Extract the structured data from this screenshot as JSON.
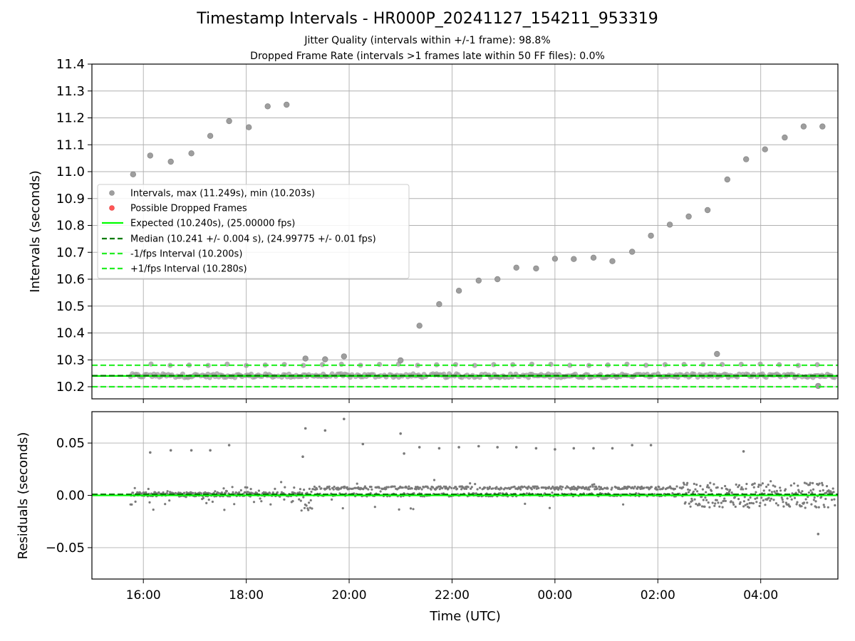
{
  "figure": {
    "title": "Timestamp Intervals - HR000P_20241127_154211_953319",
    "subtitle_1": "Jitter Quality (intervals within +/-1 frame): 98.8%",
    "subtitle_2": "Dropped Frame Rate (intervals >1 frames late within 50 FF files): 0.0%"
  },
  "colors": {
    "intervals": "#9e9e9e",
    "residuals": "#7a7a7a",
    "dropped": "#ff5555",
    "expected": "#00ff00",
    "median": "#007a00",
    "bounds": "#22ee22",
    "grid": "#b0b0b0"
  },
  "chart_data": [
    {
      "type": "scatter",
      "ylabel": "Intervals (seconds)",
      "xlabel": "",
      "ylim": [
        10.155,
        11.4
      ],
      "y_ticks": [
        "10.2",
        "10.3",
        "10.4",
        "10.5",
        "10.6",
        "10.7",
        "10.8",
        "10.9",
        "11.0",
        "11.1",
        "11.2",
        "11.3",
        "11.4"
      ],
      "x_ticks": [
        "16:00",
        "18:00",
        "20:00",
        "22:00",
        "00:00",
        "02:00",
        "04:00"
      ],
      "grid": true,
      "legend_position": "center-left",
      "legend": [
        "Intervals, max (11.249s), min (10.203s)",
        "Possible Dropped Frames",
        "Expected (10.240s), (25.00000 fps)",
        "Median (10.241 +/- 0.004 s), (24.99775 +/- 0.01 fps)",
        "-1/fps Interval (10.200s)",
        "+1/fps Interval (10.280s)"
      ],
      "reference_lines": {
        "expected": 10.24,
        "median": 10.241,
        "minus_1fps": 10.2,
        "plus_1fps": 10.28
      },
      "outliers": [
        {
          "t": "15:48",
          "y": 10.99
        },
        {
          "t": "16:08",
          "y": 11.06
        },
        {
          "t": "16:32",
          "y": 11.037
        },
        {
          "t": "16:56",
          "y": 11.068
        },
        {
          "t": "17:18",
          "y": 11.133
        },
        {
          "t": "17:40",
          "y": 11.188
        },
        {
          "t": "18:03",
          "y": 11.165
        },
        {
          "t": "18:25",
          "y": 11.243
        },
        {
          "t": "18:47",
          "y": 11.249
        },
        {
          "t": "19:09",
          "y": 10.305
        },
        {
          "t": "19:32",
          "y": 10.302
        },
        {
          "t": "19:54",
          "y": 10.313
        },
        {
          "t": "21:00",
          "y": 10.298
        },
        {
          "t": "21:22",
          "y": 10.427
        },
        {
          "t": "21:45",
          "y": 10.507
        },
        {
          "t": "22:08",
          "y": 10.557
        },
        {
          "t": "22:31",
          "y": 10.595
        },
        {
          "t": "22:53",
          "y": 10.6
        },
        {
          "t": "23:15",
          "y": 10.643
        },
        {
          "t": "23:38",
          "y": 10.64
        },
        {
          "t": "00:00",
          "y": 10.676
        },
        {
          "t": "00:22",
          "y": 10.675
        },
        {
          "t": "00:45",
          "y": 10.68
        },
        {
          "t": "01:07",
          "y": 10.667
        },
        {
          "t": "01:30",
          "y": 10.702
        },
        {
          "t": "01:52",
          "y": 10.762
        },
        {
          "t": "02:14",
          "y": 10.803
        },
        {
          "t": "02:36",
          "y": 10.833
        },
        {
          "t": "02:58",
          "y": 10.857
        },
        {
          "t": "03:09",
          "y": 10.322
        },
        {
          "t": "03:21",
          "y": 10.971
        },
        {
          "t": "03:43",
          "y": 11.046
        },
        {
          "t": "04:05",
          "y": 11.083
        },
        {
          "t": "04:28",
          "y": 11.127
        },
        {
          "t": "04:50",
          "y": 11.168
        },
        {
          "t": "05:12",
          "y": 11.168
        },
        {
          "t": "05:07",
          "y": 10.203
        }
      ]
    },
    {
      "type": "scatter",
      "ylabel": "Residuals (seconds)",
      "xlabel": "Time (UTC)",
      "ylim": [
        -0.08,
        0.08
      ],
      "y_ticks": [
        "0.05",
        "0.00",
        "−0.05"
      ],
      "x_ticks": [
        "16:00",
        "18:00",
        "20:00",
        "22:00",
        "00:00",
        "02:00",
        "04:00"
      ],
      "grid": true,
      "outliers": [
        {
          "t": "16:08",
          "y": 0.041
        },
        {
          "t": "16:32",
          "y": 0.043
        },
        {
          "t": "16:56",
          "y": 0.043
        },
        {
          "t": "17:18",
          "y": 0.043
        },
        {
          "t": "17:40",
          "y": 0.048
        },
        {
          "t": "19:09",
          "y": 0.064
        },
        {
          "t": "19:06",
          "y": 0.037
        },
        {
          "t": "19:32",
          "y": 0.062
        },
        {
          "t": "19:54",
          "y": 0.073
        },
        {
          "t": "20:16",
          "y": 0.049
        },
        {
          "t": "21:00",
          "y": 0.059
        },
        {
          "t": "21:04",
          "y": 0.04
        },
        {
          "t": "21:22",
          "y": 0.046
        },
        {
          "t": "21:45",
          "y": 0.045
        },
        {
          "t": "22:08",
          "y": 0.046
        },
        {
          "t": "22:31",
          "y": 0.047
        },
        {
          "t": "22:53",
          "y": 0.046
        },
        {
          "t": "23:15",
          "y": 0.046
        },
        {
          "t": "23:38",
          "y": 0.045
        },
        {
          "t": "00:00",
          "y": 0.044
        },
        {
          "t": "00:22",
          "y": 0.045
        },
        {
          "t": "00:45",
          "y": 0.045
        },
        {
          "t": "01:07",
          "y": 0.045
        },
        {
          "t": "01:30",
          "y": 0.048
        },
        {
          "t": "01:52",
          "y": 0.048
        },
        {
          "t": "03:40",
          "y": 0.042
        },
        {
          "t": "05:07",
          "y": -0.037
        }
      ]
    }
  ]
}
